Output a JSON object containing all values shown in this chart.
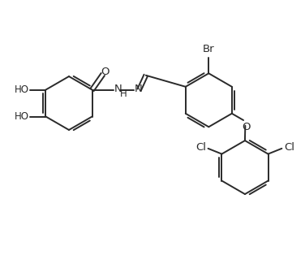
{
  "background_color": "#ffffff",
  "line_color": "#2a2a2a",
  "line_width": 1.4,
  "text_color": "#2a2a2a",
  "font_size": 8.5,
  "figsize": [
    3.76,
    3.14
  ],
  "dpi": 100,
  "xlim": [
    0,
    10
  ],
  "ylim": [
    0,
    8.3
  ]
}
